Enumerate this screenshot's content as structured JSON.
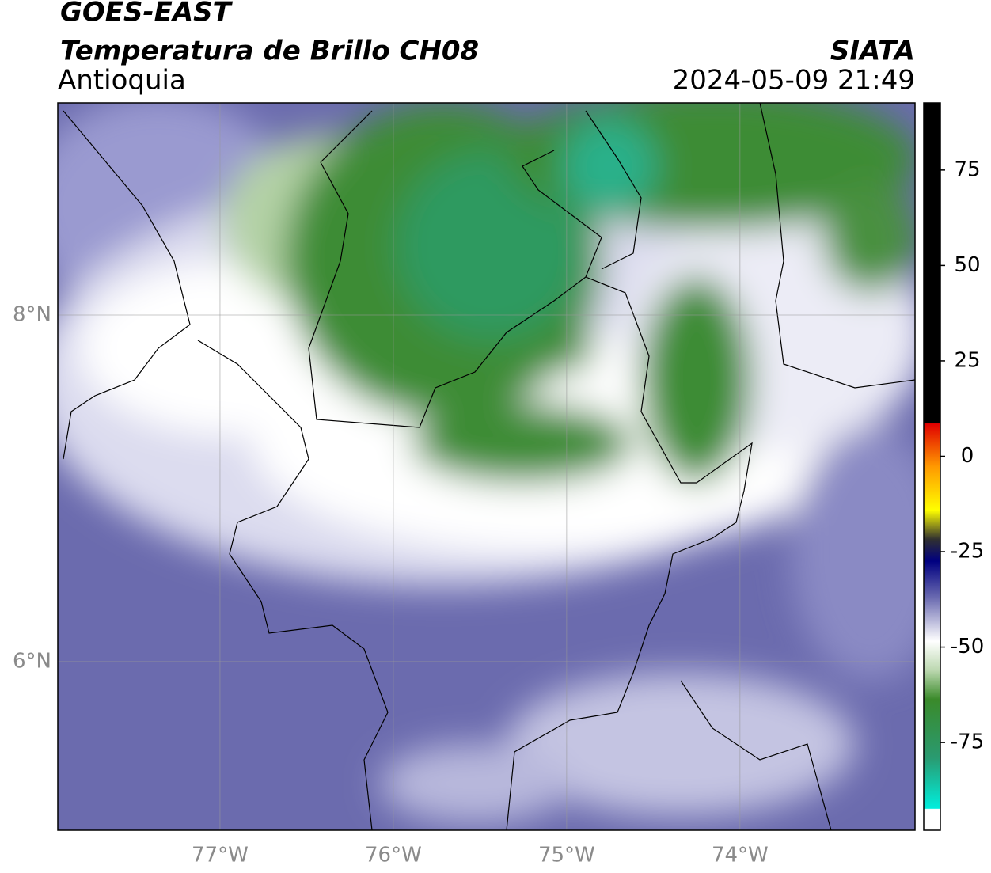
{
  "header": {
    "satellite": "GOES-EAST",
    "product": "Temperatura de Brillo CH08",
    "region": "Antioquia",
    "source": "SIATA",
    "datetime": "2024-05-09 21:49"
  },
  "chart_data": {
    "type": "map",
    "xlim": [
      -77.936,
      -72.99
    ],
    "ylim": [
      5.027,
      9.224
    ],
    "xticks": [
      {
        "value": -77,
        "label": "77°W"
      },
      {
        "value": -76,
        "label": "76°W"
      },
      {
        "value": -75,
        "label": "75°W"
      },
      {
        "value": -74,
        "label": "74°W"
      }
    ],
    "yticks": [
      {
        "value": 6,
        "label": "6°N"
      },
      {
        "value": 8,
        "label": "8°N"
      }
    ],
    "grid": true,
    "colorbar": {
      "lim": [
        -98,
        92.6
      ],
      "ticks": [
        -75,
        -50,
        -25,
        0,
        25,
        50,
        75
      ]
    }
  }
}
